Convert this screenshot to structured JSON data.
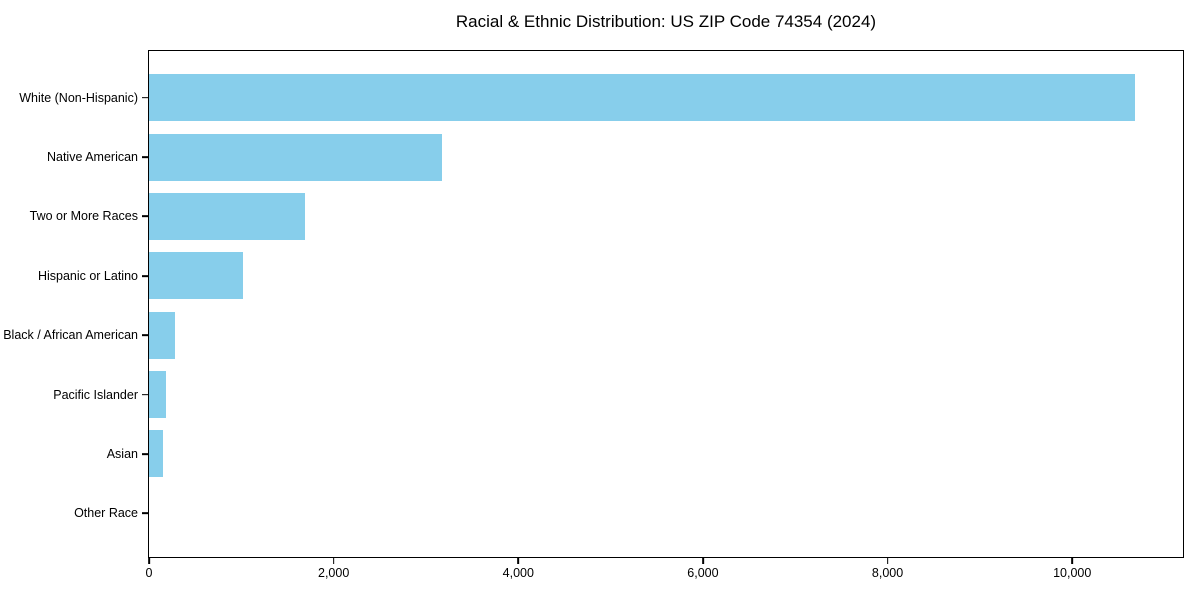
{
  "chart_data": {
    "type": "bar",
    "orientation": "horizontal",
    "title": "Racial & Ethnic Distribution: US ZIP Code 74354 (2024)",
    "categories": [
      "White (Non-Hispanic)",
      "Native American",
      "Two or More Races",
      "Hispanic or Latino",
      "Black / African American",
      "Pacific Islander",
      "Asian",
      "Other Race"
    ],
    "values": [
      10680,
      3170,
      1690,
      1020,
      280,
      185,
      150,
      0
    ],
    "xlabel": "",
    "ylabel": "",
    "xlim": [
      0,
      11200
    ],
    "xticks": [
      0,
      2000,
      4000,
      6000,
      8000,
      10000
    ],
    "xtick_labels": [
      "0",
      "2,000",
      "4,000",
      "6,000",
      "8,000",
      "10,000"
    ],
    "bar_color": "#87CEEB",
    "axis_color": "#000000",
    "background_color": "#FFFFFF",
    "grid": false,
    "legend": null
  }
}
